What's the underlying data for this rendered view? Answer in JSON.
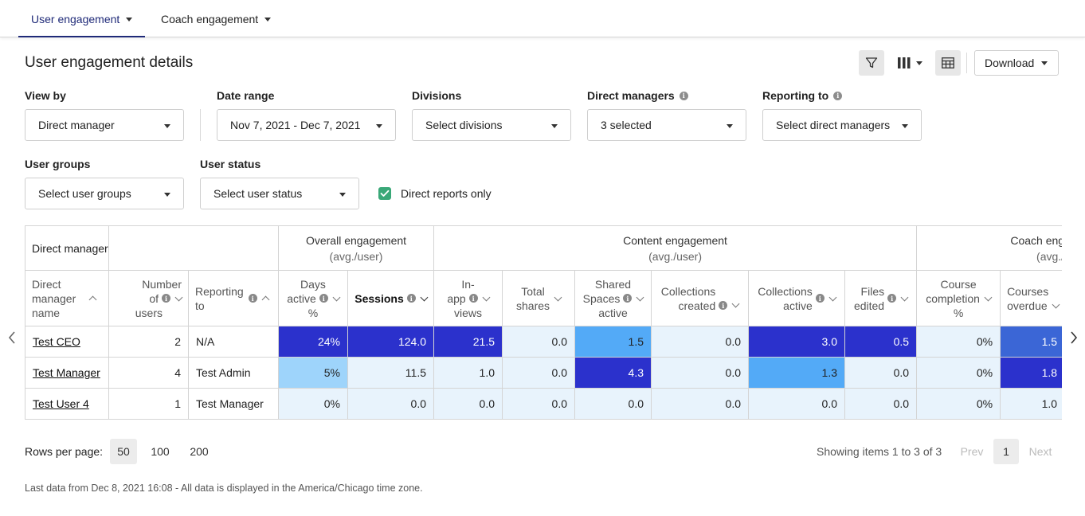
{
  "tabs": [
    {
      "label": "User engagement",
      "active": true
    },
    {
      "label": "Coach engagement",
      "active": false
    }
  ],
  "page_title": "User engagement details",
  "toolbar": {
    "filter_icon": "filter-icon",
    "columns_icon": "columns-icon",
    "table_icon": "table-icon",
    "download_label": "Download"
  },
  "filters": {
    "view_by": {
      "label": "View by",
      "value": "Direct manager"
    },
    "date_range": {
      "label": "Date range",
      "value": "Nov 7, 2021 - Dec 7, 2021"
    },
    "divisions": {
      "label": "Divisions",
      "value": "Select divisions"
    },
    "direct_managers": {
      "label": "Direct managers",
      "value": "3 selected"
    },
    "reporting_to": {
      "label": "Reporting to",
      "value": "Select direct managers"
    },
    "user_groups": {
      "label": "User groups",
      "value": "Select user groups"
    },
    "user_status": {
      "label": "User status",
      "value": "Select user status"
    },
    "direct_reports_only": {
      "label": "Direct reports only",
      "checked": true
    }
  },
  "table": {
    "group_headers": {
      "direct_manager": "Direct manager",
      "overall": {
        "title": "Overall engagement",
        "sub": "(avg./user)"
      },
      "content": {
        "title": "Content engagement",
        "sub": "(avg./user)"
      },
      "coach": {
        "title": "Coach eng",
        "sub": "(avg./"
      }
    },
    "columns": {
      "name": [
        "Direct",
        "manager",
        "name"
      ],
      "users": [
        "Number",
        "of",
        "users"
      ],
      "reporting": [
        "Reporting",
        "to"
      ],
      "days_active": [
        "Days",
        "active",
        "%"
      ],
      "sessions": [
        "Sessions"
      ],
      "inapp": [
        "In-",
        "app",
        "views"
      ],
      "shares": [
        "Total",
        "shares"
      ],
      "shared_spaces": [
        "Shared",
        "Spaces",
        "active"
      ],
      "coll_created": [
        "Collections",
        "created"
      ],
      "coll_active": [
        "Collections",
        "active"
      ],
      "files": [
        "Files",
        "edited"
      ],
      "course_completion": [
        "Course",
        "completion",
        "%"
      ],
      "courses_overdue": [
        "Courses",
        "overdue"
      ]
    },
    "rows": [
      {
        "name": "Test CEO",
        "users": "2",
        "reporting": "N/A",
        "days_active": "24%",
        "sessions": "124.0",
        "inapp": "21.5",
        "shares": "0.0",
        "shared_spaces": "1.5",
        "coll_created": "0.0",
        "coll_active": "3.0",
        "files": "0.5",
        "course_completion": "0%",
        "courses_overdue": "1.5"
      },
      {
        "name": "Test Manager",
        "users": "4",
        "reporting": "Test Admin",
        "days_active": "5%",
        "sessions": "11.5",
        "inapp": "1.0",
        "shares": "0.0",
        "shared_spaces": "4.3",
        "coll_created": "0.0",
        "coll_active": "1.3",
        "files": "0.0",
        "course_completion": "0%",
        "courses_overdue": "1.8"
      },
      {
        "name": "Test User 4",
        "users": "1",
        "reporting": "Test Manager",
        "days_active": "0%",
        "sessions": "0.0",
        "inapp": "0.0",
        "shares": "0.0",
        "shared_spaces": "0.0",
        "coll_created": "0.0",
        "coll_active": "0.0",
        "files": "0.0",
        "course_completion": "0%",
        "courses_overdue": "1.0"
      }
    ],
    "heat_levels": [
      [
        "c4",
        "c4",
        "c4",
        "c0",
        "c2",
        "c0",
        "c4",
        "c4",
        "c0",
        "c3"
      ],
      [
        "c1",
        "c0",
        "c0",
        "c0",
        "c4",
        "c0",
        "c2",
        "c0",
        "c0",
        "c4"
      ],
      [
        "c0",
        "c0",
        "c0",
        "c0",
        "c0",
        "c0",
        "c0",
        "c0",
        "c0",
        "c0"
      ]
    ],
    "heat_colors": {
      "c0": "#e8f3fc",
      "c1": "#9ed4fb",
      "c2": "#53aaf7",
      "c3": "#3b66d6",
      "c4": "#2b31cc"
    }
  },
  "pagination": {
    "rows_per_page_label": "Rows per page:",
    "options": [
      "50",
      "100",
      "200"
    ],
    "selected": "50",
    "showing": "Showing items 1 to 3 of 3",
    "prev": "Prev",
    "current": "1",
    "next": "Next"
  },
  "footnote": "Last data from Dec 8, 2021 16:08 - All data is displayed in the America/Chicago time zone."
}
